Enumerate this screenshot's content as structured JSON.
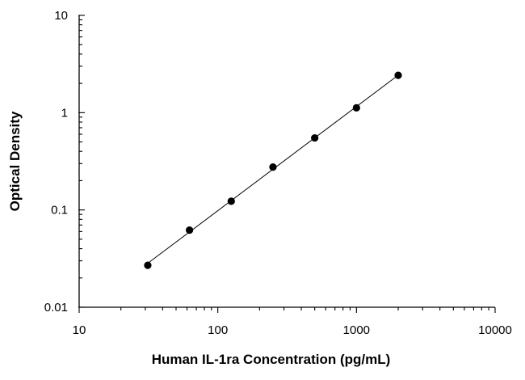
{
  "chart_data": {
    "type": "scatter",
    "title": "",
    "xlabel": "Human IL-1ra Concentration (pg/mL)",
    "ylabel": "Optical Density",
    "x_scale": "log",
    "y_scale": "log",
    "xlim": [
      10,
      10000
    ],
    "ylim": [
      0.01,
      10
    ],
    "x_tick_labels": [
      "10",
      "100",
      "1000",
      "10000"
    ],
    "y_tick_labels": [
      "0.01",
      "0.1",
      "1",
      "10"
    ],
    "grid": false,
    "legend": "none",
    "series": [
      {
        "x": [
          31.25,
          62.5,
          125,
          250,
          500,
          1000,
          2000
        ],
        "y": [
          0.027,
          0.062,
          0.123,
          0.276,
          0.55,
          1.12,
          2.42
        ],
        "trendline": "power fit",
        "color": "#000000"
      }
    ]
  }
}
